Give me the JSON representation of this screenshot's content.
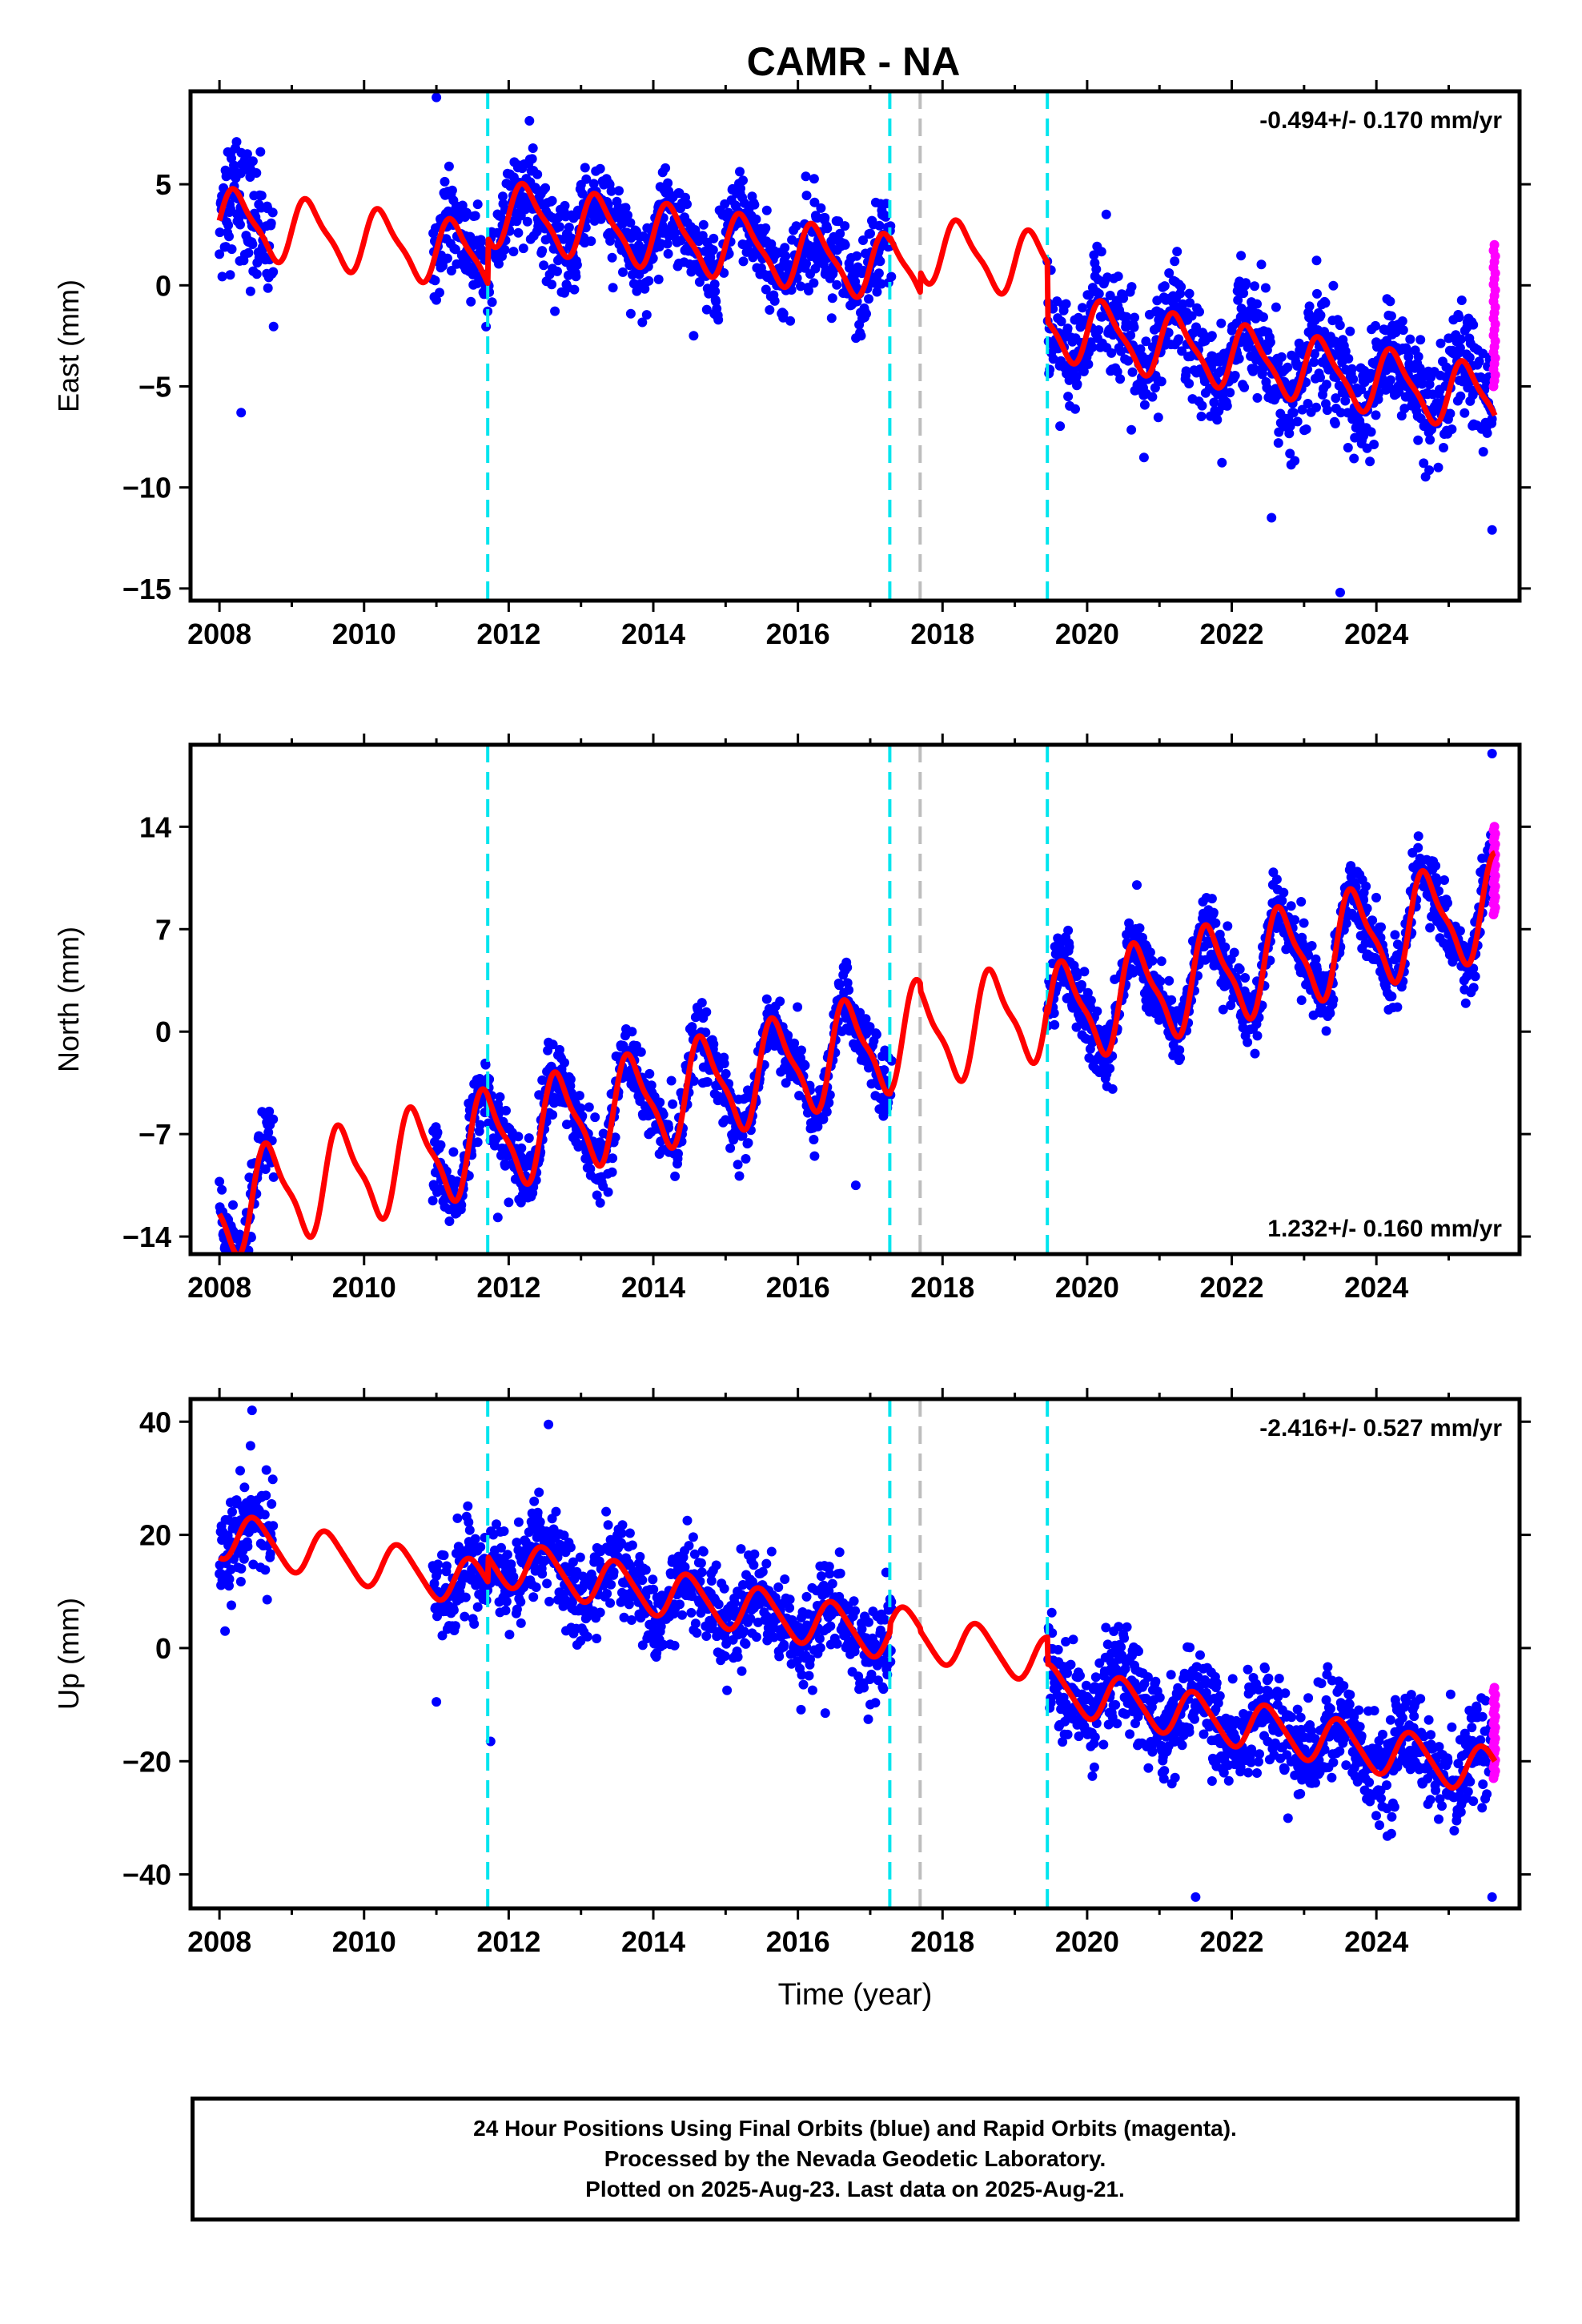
{
  "title": "CAMR - NA",
  "colors": {
    "final": "#0000ff",
    "rapid": "#ff00ff",
    "model": "#ff0000",
    "offset_cyan": "#00e5ee",
    "offset_gray": "#bdbdbd"
  },
  "offset_epochs": [
    {
      "year": 2011.71,
      "color": "cyan"
    },
    {
      "year": 2017.27,
      "color": "cyan"
    },
    {
      "year": 2017.69,
      "color": "gray"
    },
    {
      "year": 2019.45,
      "color": "cyan"
    }
  ],
  "chart_data": [
    {
      "type": "scatter",
      "component": "east",
      "ylabel": "East (mm)",
      "xlabel": "",
      "rate_label": "-0.494+/- 0.170 mm/yr",
      "rate_position": "top-right",
      "xlim": [
        2007.6,
        2025.98
      ],
      "ylim": [
        -15.6,
        9.6
      ],
      "xticks": [
        2008,
        2010,
        2012,
        2014,
        2016,
        2018,
        2020,
        2022,
        2024
      ],
      "yticks": [
        5,
        0,
        -5,
        -10,
        -15
      ],
      "tick_labels_x": [
        "2008",
        "2010",
        "2012",
        "2014",
        "2016",
        "2018",
        "2020",
        "2022",
        "2024"
      ],
      "tick_labels_y": [
        "5",
        "0",
        "−5",
        "−10",
        "−15"
      ],
      "model": {
        "velocity": -0.494,
        "annual_amp": 1.5,
        "annual_phase": 0.0,
        "semiannual_amp": 0.4,
        "segments": [
          {
            "start": 2008.0,
            "end": 2011.71,
            "value_at_start": 3.2
          },
          {
            "start": 2011.71,
            "end": 2017.27,
            "value_at_start": 3.6
          },
          {
            "start": 2017.27,
            "end": 2017.69,
            "value_at_start": 1.0
          },
          {
            "start": 2017.69,
            "end": 2019.45,
            "value_at_start": 1.8
          },
          {
            "start": 2019.45,
            "end": 2025.64,
            "value_at_start": -2.0
          }
        ],
        "post_2019_extra_rate": -0.1
      },
      "data_ranges": [
        {
          "start": 2008.0,
          "end": 2008.75,
          "scatter": 1.6
        },
        {
          "start": 2010.95,
          "end": 2017.3,
          "scatter": 1.1
        },
        {
          "start": 2019.45,
          "end": 2025.6,
          "scatter": 1.3
        }
      ],
      "rapid_range": {
        "start": 2025.62,
        "end": 2025.65,
        "center": -1.5,
        "spread": 3.5
      },
      "outliers": [
        [
          2011.0,
          9.3
        ],
        [
          2023.5,
          -15.2
        ],
        [
          2022.55,
          -11.5
        ],
        [
          2025.6,
          -12.1
        ],
        [
          2008.3,
          -6.3
        ]
      ]
    },
    {
      "type": "scatter",
      "component": "north",
      "ylabel": "North (mm)",
      "xlabel": "",
      "rate_label": "1.232+/- 0.160 mm/yr",
      "rate_position": "bottom-right",
      "xlim": [
        2007.6,
        2025.98
      ],
      "ylim": [
        -15.2,
        19.6
      ],
      "xticks": [
        2008,
        2010,
        2012,
        2014,
        2016,
        2018,
        2020,
        2022,
        2024
      ],
      "yticks": [
        14,
        7,
        0,
        -7,
        -14
      ],
      "tick_labels_x": [
        "2008",
        "2010",
        "2012",
        "2014",
        "2016",
        "2018",
        "2020",
        "2022",
        "2024"
      ],
      "tick_labels_y": [
        "14",
        "7",
        "0",
        "−7",
        "−14"
      ],
      "model": {
        "velocity": 1.232,
        "annual_amp": 3.2,
        "annual_phase": 0.55,
        "semiannual_amp": 0.9,
        "segments": [
          {
            "start": 2008.0,
            "end": 2011.71,
            "value_at_start": -12.0
          },
          {
            "start": 2011.71,
            "end": 2017.27,
            "value_at_start": -7.5
          },
          {
            "start": 2017.27,
            "end": 2017.69,
            "value_at_start": -0.5
          },
          {
            "start": 2017.69,
            "end": 2019.45,
            "value_at_start": -0.5
          },
          {
            "start": 2019.45,
            "end": 2025.64,
            "value_at_start": 1.0
          }
        ],
        "post_2019_extra_rate": 0.0
      },
      "data_ranges": [
        {
          "start": 2008.0,
          "end": 2008.75,
          "scatter": 1.4
        },
        {
          "start": 2010.95,
          "end": 2017.3,
          "scatter": 1.2
        },
        {
          "start": 2019.45,
          "end": 2025.6,
          "scatter": 1.1
        }
      ],
      "rapid_range": {
        "start": 2025.62,
        "end": 2025.65,
        "center": 11.0,
        "spread": 3.0
      },
      "outliers": [
        [
          2025.6,
          19.0
        ],
        [
          2016.8,
          -10.5
        ],
        [
          2011.85,
          -12.7
        ]
      ]
    },
    {
      "type": "scatter",
      "component": "up",
      "ylabel": "Up (mm)",
      "xlabel": "Time (year)",
      "rate_label": "-2.416+/- 0.527 mm/yr",
      "rate_position": "top-right",
      "xlim": [
        2007.6,
        2025.98
      ],
      "ylim": [
        -46,
        44
      ],
      "xticks": [
        2008,
        2010,
        2012,
        2014,
        2016,
        2018,
        2020,
        2022,
        2024
      ],
      "yticks": [
        40,
        20,
        0,
        -20,
        -40
      ],
      "tick_labels_x": [
        "2008",
        "2010",
        "2012",
        "2014",
        "2016",
        "2018",
        "2020",
        "2022",
        "2024"
      ],
      "tick_labels_y": [
        "40",
        "20",
        "0",
        "−20",
        "−40"
      ],
      "model": {
        "velocity": -2.416,
        "annual_amp": 4.0,
        "annual_phase": 0.75,
        "semiannual_amp": 0.6,
        "segments": [
          {
            "start": 2008.0,
            "end": 2011.71,
            "value_at_start": 20.0
          },
          {
            "start": 2011.71,
            "end": 2017.27,
            "value_at_start": 15.5
          },
          {
            "start": 2017.27,
            "end": 2017.69,
            "value_at_start": 3.5
          },
          {
            "start": 2017.69,
            "end": 2019.45,
            "value_at_start": 2.0
          },
          {
            "start": 2019.45,
            "end": 2025.64,
            "value_at_start": -7.0
          }
        ],
        "post_2019_extra_rate": 0.0
      },
      "data_ranges": [
        {
          "start": 2008.0,
          "end": 2008.75,
          "scatter": 4.5
        },
        {
          "start": 2010.95,
          "end": 2017.3,
          "scatter": 4.0
        },
        {
          "start": 2019.45,
          "end": 2025.6,
          "scatter": 4.3
        }
      ],
      "rapid_range": {
        "start": 2025.62,
        "end": 2025.65,
        "center": -15.0,
        "spread": 8.0
      },
      "outliers": [
        [
          2008.45,
          42.0
        ],
        [
          2012.55,
          39.5
        ],
        [
          2021.5,
          -44.0
        ],
        [
          2025.6,
          -44.0
        ],
        [
          2011.75,
          -16.5
        ],
        [
          2011.0,
          -9.5
        ]
      ]
    }
  ],
  "footer": {
    "line1": "24 Hour Positions Using Final Orbits (blue) and Rapid Orbits (magenta).",
    "line2": "Processed by the Nevada Geodetic Laboratory.",
    "line3": "Plotted on 2025-Aug-23. Last data on 2025-Aug-21."
  }
}
